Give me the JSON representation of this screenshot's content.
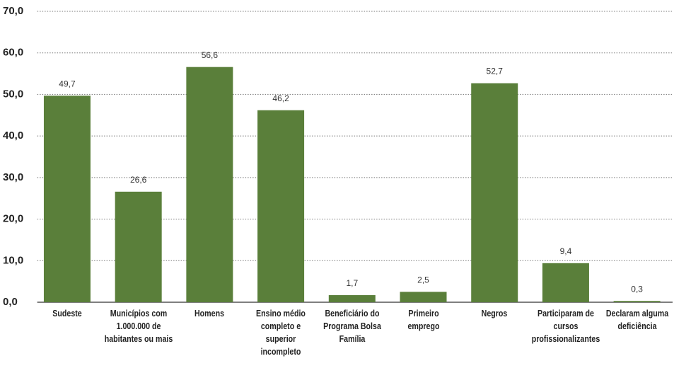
{
  "chart_data": {
    "type": "bar",
    "categories": [
      "Sudeste",
      "Municípios com\n1.000.000 de\nhabitantes ou mais",
      "Homens",
      "Ensino médio\ncompleto e\nsuperior\nincompleto",
      "Beneficiário do\nPrograma Bolsa\nFamília",
      "Primeiro\nemprego",
      "Negros",
      "Participaram de\ncursos\nprofissionalizantes",
      "Declaram alguma\ndeficiência"
    ],
    "values": [
      49.7,
      26.6,
      56.6,
      46.2,
      1.7,
      2.5,
      52.7,
      9.4,
      0.3
    ],
    "value_labels": [
      "49,7",
      "26,6",
      "56,6",
      "46,2",
      "1,7",
      "2,5",
      "52,7",
      "9,4",
      "0,3"
    ],
    "color": "#5a7f3a",
    "ylim": [
      0,
      70
    ],
    "yticks": [
      {
        "value": 0,
        "label": "0,0"
      },
      {
        "value": 10,
        "label": "10,0"
      },
      {
        "value": 20,
        "label": "20,0"
      },
      {
        "value": 30,
        "label": "30,0"
      },
      {
        "value": 40,
        "label": "40,0"
      },
      {
        "value": 50,
        "label": "50,0"
      },
      {
        "value": 60,
        "label": "60,0"
      },
      {
        "value": 70,
        "label": "70,0"
      }
    ],
    "grid": true
  }
}
